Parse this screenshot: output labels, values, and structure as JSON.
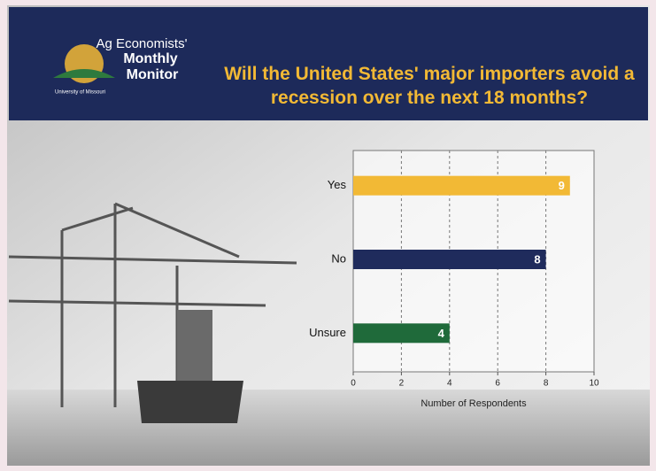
{
  "header": {
    "logo_line1": "Ag Economists'",
    "logo_line2": "Monthly",
    "logo_line3": "Monitor",
    "logo_affiliation": "University of Missouri"
  },
  "chart_data": {
    "type": "bar",
    "orientation": "horizontal",
    "title": "Will the United States' major importers avoid a recession over the next 18 months?",
    "categories": [
      "Yes",
      "No",
      "Unsure"
    ],
    "values": [
      9,
      8,
      4
    ],
    "colors": [
      "#f2b935",
      "#1f2b5c",
      "#1f6a3a"
    ],
    "xlim": [
      0,
      10
    ],
    "xticks": [
      0,
      2,
      4,
      6,
      8,
      10
    ],
    "x_label": "Number of Respondents",
    "grid": true
  }
}
